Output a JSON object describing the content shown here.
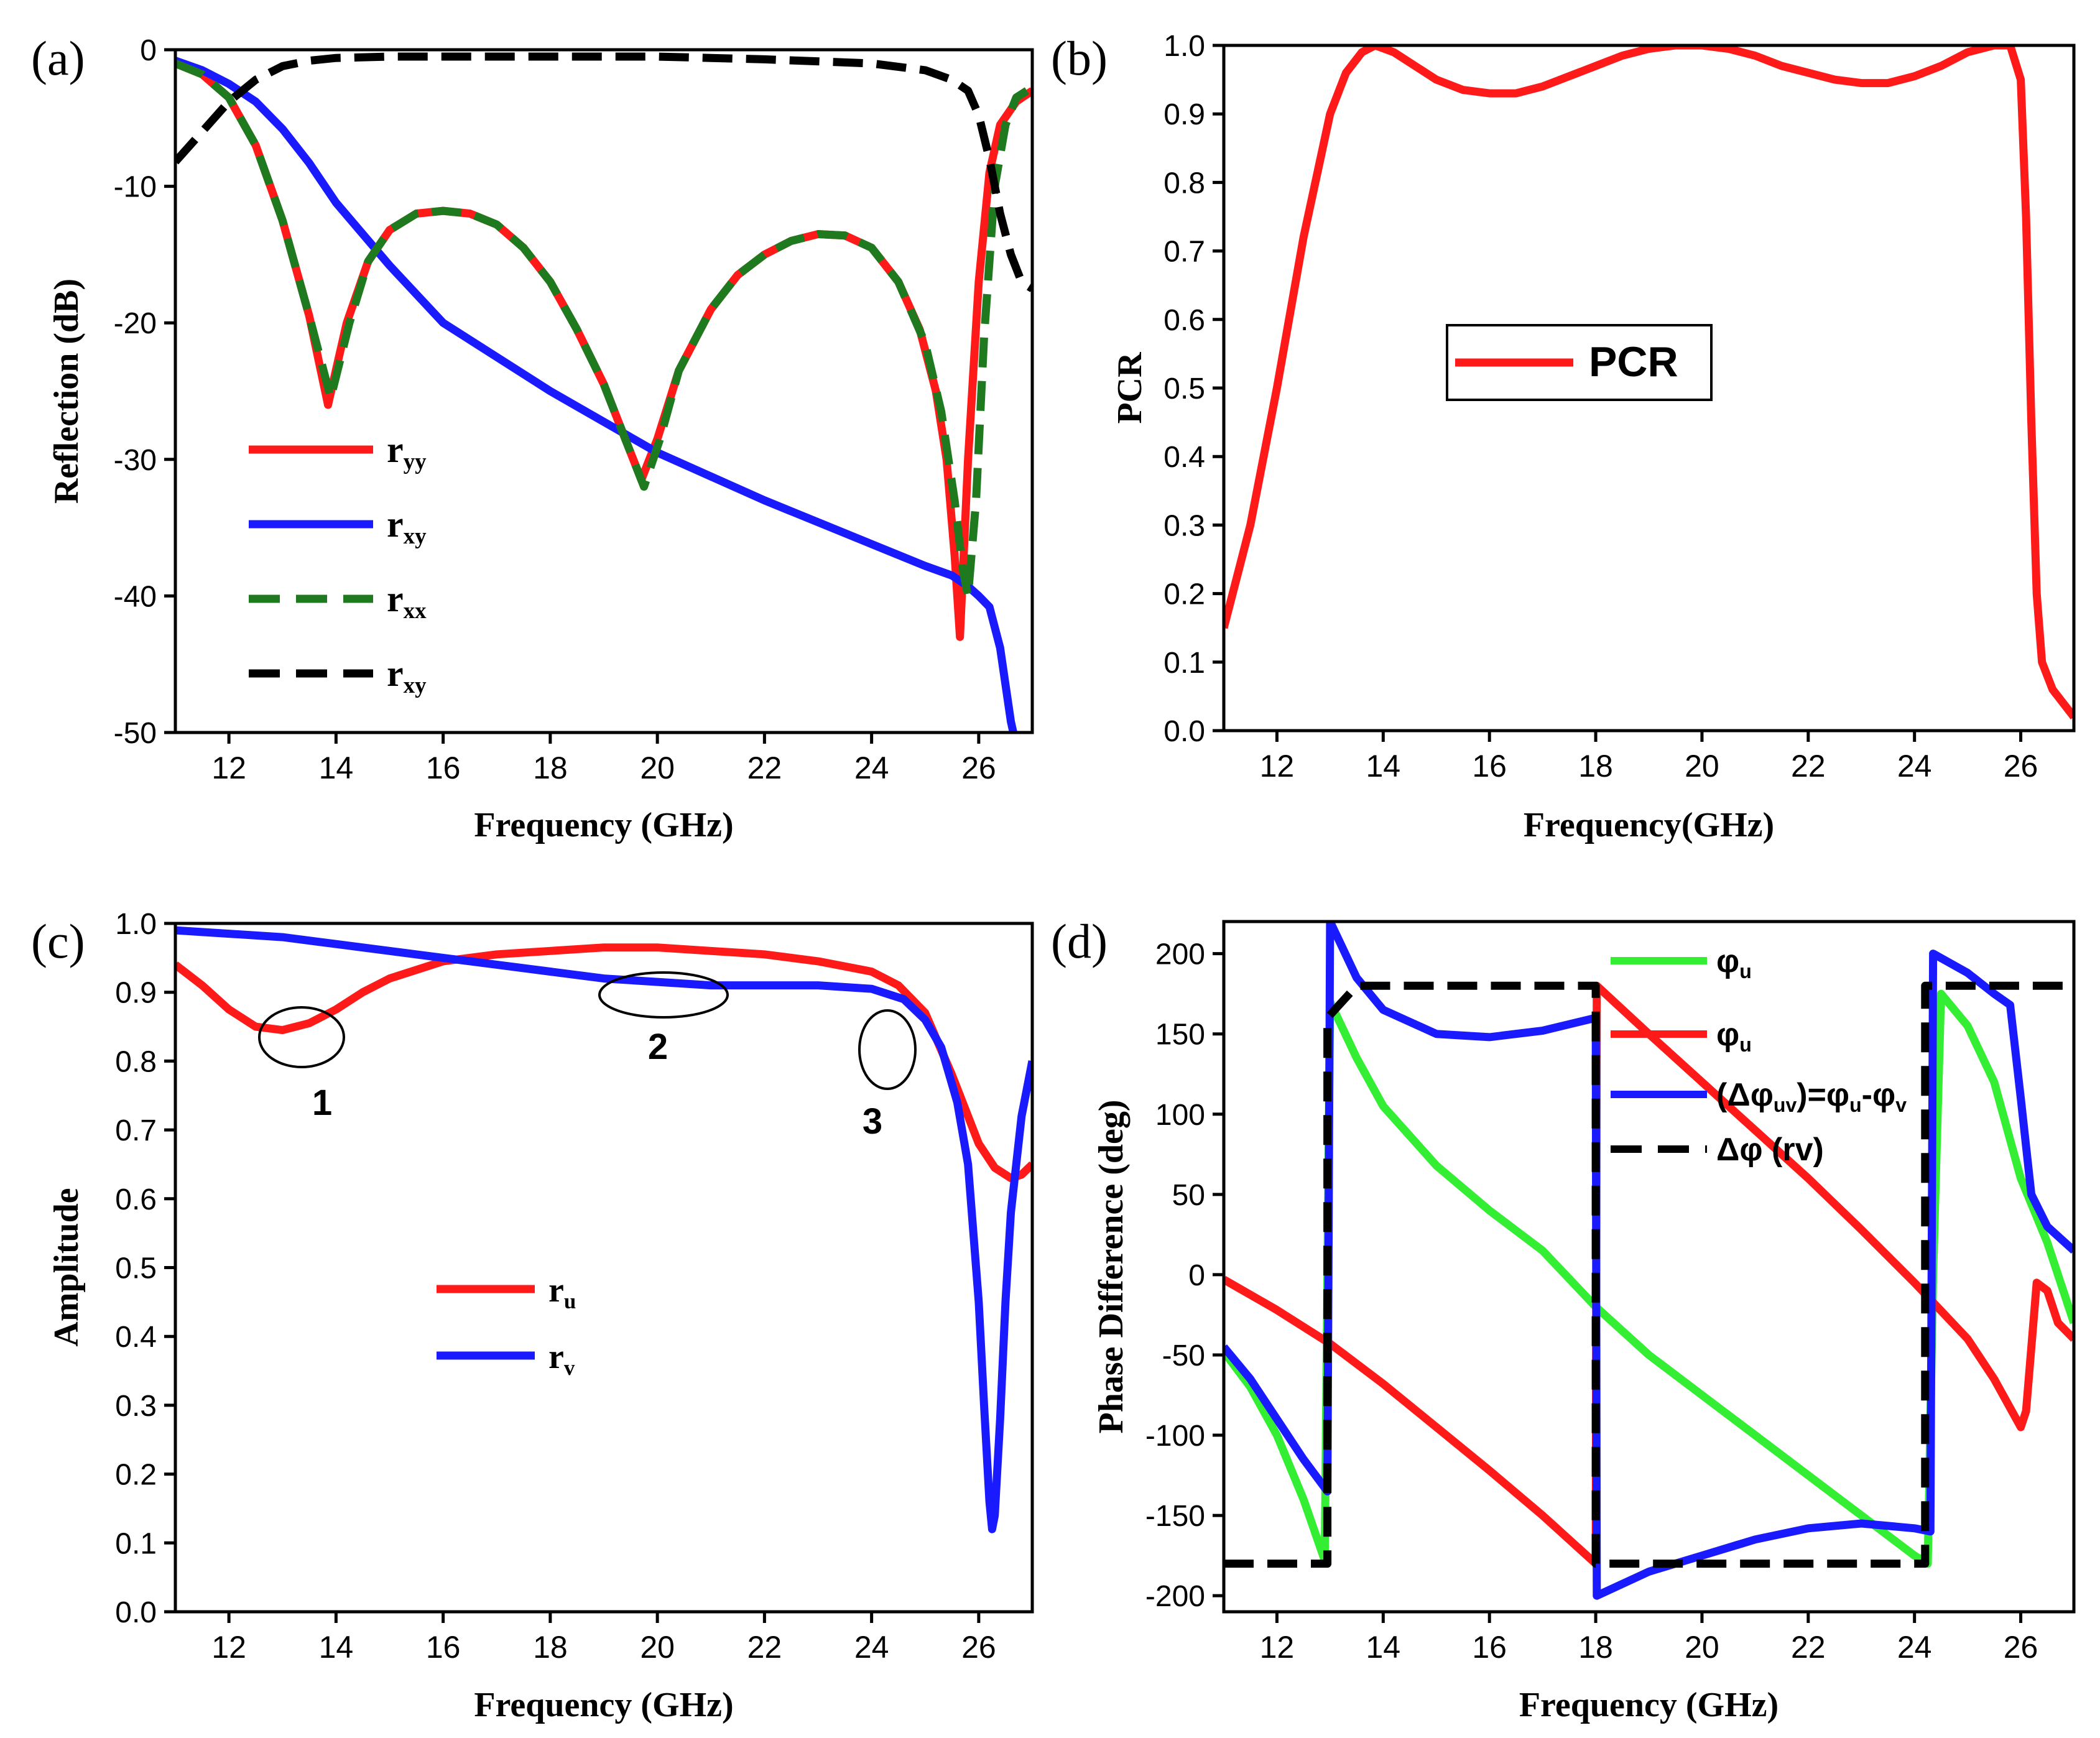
{
  "chart_data": [
    {
      "panel_label": "(a)",
      "type": "line",
      "xlabel": "Frequency (GHz)",
      "ylabel": "Reflection (dB)",
      "xlim": [
        11,
        27
      ],
      "ylim": [
        -50,
        0
      ],
      "xticks": [
        12,
        14,
        16,
        18,
        20,
        22,
        24,
        26
      ],
      "yticks": [
        0,
        -10,
        -20,
        -30,
        -40,
        -50
      ],
      "legend_position": "bottom-left",
      "series": [
        {
          "name": "ryy",
          "name_main": "r",
          "name_sub": "yy",
          "color": "#ff1a1a",
          "dash": "solid",
          "x": [
            11,
            11.5,
            12,
            12.5,
            13,
            13.5,
            13.85,
            14.2,
            14.6,
            15,
            15.5,
            16,
            16.5,
            17,
            17.5,
            18,
            18.5,
            19,
            19.4,
            19.7,
            20,
            20.4,
            21,
            21.5,
            22,
            22.5,
            23,
            23.5,
            24,
            24.5,
            24.9,
            25.2,
            25.4,
            25.55,
            25.65,
            25.8,
            26,
            26.2,
            26.4,
            26.7,
            27
          ],
          "y": [
            -1,
            -1.8,
            -3.5,
            -7,
            -12.5,
            -19.5,
            -26,
            -20,
            -15.5,
            -13.2,
            -12,
            -11.8,
            -12,
            -12.8,
            -14.5,
            -17,
            -20.5,
            -24.5,
            -28.5,
            -31.5,
            -28.5,
            -23.5,
            -19,
            -16.5,
            -15,
            -14,
            -13.5,
            -13.6,
            -14.5,
            -17,
            -20.5,
            -25,
            -30,
            -37,
            -43,
            -30,
            -17,
            -9,
            -5.5,
            -3.8,
            -3
          ]
        },
        {
          "name": "rxy",
          "name_main": "r",
          "name_sub": "xy",
          "color": "#1a1aff",
          "dash": "solid",
          "x": [
            11,
            11.5,
            12,
            12.5,
            13,
            13.5,
            14,
            15,
            16,
            18,
            20,
            22,
            24,
            25,
            25.5,
            25.8,
            26,
            26.2,
            26.4,
            26.6,
            26.8,
            27
          ],
          "y": [
            -0.8,
            -1.5,
            -2.5,
            -3.8,
            -5.8,
            -8.3,
            -11.2,
            -15.8,
            -20,
            -25,
            -29.5,
            -33,
            -36.2,
            -37.8,
            -38.5,
            -39.3,
            -40,
            -40.8,
            -43.8,
            -49.2,
            -52.7,
            -58
          ]
        },
        {
          "name": "rxx",
          "name_main": "r",
          "name_sub": "xx",
          "color": "#1f7a1f",
          "dash": "dash",
          "x": [
            11,
            11.5,
            12,
            12.5,
            13,
            13.5,
            13.9,
            14.25,
            14.6,
            15,
            15.5,
            16,
            16.5,
            17,
            17.5,
            18,
            18.5,
            19,
            19.4,
            19.75,
            20.05,
            20.4,
            21,
            21.5,
            22,
            22.5,
            23,
            23.5,
            24,
            24.5,
            25,
            25.3,
            25.55,
            25.7,
            25.8,
            25.95,
            26.1,
            26.3,
            26.5,
            26.7,
            26.9
          ],
          "y": [
            -1,
            -1.8,
            -3.5,
            -7,
            -12.5,
            -19.5,
            -25.5,
            -20,
            -15.5,
            -13.2,
            -12,
            -11.8,
            -12,
            -12.8,
            -14.5,
            -17,
            -20.5,
            -24.5,
            -28.5,
            -32,
            -28.5,
            -23.5,
            -19,
            -16.5,
            -15,
            -14,
            -13.5,
            -13.6,
            -14.5,
            -17,
            -21.5,
            -26.5,
            -33,
            -38,
            -40,
            -33,
            -21,
            -10,
            -5.5,
            -3.5,
            -3
          ]
        },
        {
          "name": "rxy",
          "name_main": "r",
          "name_sub": "xy",
          "color": "#000000",
          "dash": "dash",
          "x": [
            11,
            11.5,
            12,
            12.5,
            13,
            13.5,
            14,
            15,
            16,
            18,
            20,
            22,
            24,
            25,
            25.5,
            25.8,
            26,
            26.2,
            26.4,
            26.6,
            26.8,
            27
          ],
          "y": [
            -8.2,
            -6,
            -3.8,
            -2.2,
            -1.2,
            -0.8,
            -0.6,
            -0.5,
            -0.5,
            -0.5,
            -0.5,
            -0.7,
            -1,
            -1.5,
            -2.2,
            -3,
            -4.8,
            -8,
            -12,
            -15,
            -17,
            -17.5
          ]
        }
      ]
    },
    {
      "panel_label": "(b)",
      "type": "line",
      "xlabel": "Frequency(GHz)",
      "ylabel": "PCR",
      "xlim": [
        11,
        27
      ],
      "ylim": [
        0,
        1
      ],
      "xticks": [
        12,
        14,
        16,
        18,
        20,
        22,
        24,
        26
      ],
      "yticks": [
        0.0,
        0.1,
        0.2,
        0.3,
        0.4,
        0.5,
        0.6,
        0.7,
        0.8,
        0.9,
        1.0
      ],
      "legend_position": "center",
      "series": [
        {
          "name": "PCR",
          "color": "#ff1a1a",
          "dash": "solid",
          "x": [
            11,
            11.5,
            12,
            12.5,
            13,
            13.3,
            13.6,
            13.85,
            14.2,
            14.6,
            15,
            15.5,
            16,
            16.5,
            17,
            17.5,
            18,
            18.5,
            19,
            19.5,
            20,
            20.5,
            21,
            21.5,
            22,
            22.5,
            23,
            23.5,
            24,
            24.5,
            25,
            25.5,
            25.8,
            26,
            26.1,
            26.2,
            26.3,
            26.4,
            26.6,
            26.8,
            27
          ],
          "y": [
            0.15,
            0.3,
            0.5,
            0.72,
            0.9,
            0.96,
            0.99,
            1.0,
            0.99,
            0.97,
            0.95,
            0.935,
            0.93,
            0.93,
            0.94,
            0.955,
            0.97,
            0.985,
            0.995,
            1.0,
            1.0,
            0.995,
            0.985,
            0.97,
            0.96,
            0.95,
            0.945,
            0.945,
            0.955,
            0.97,
            0.99,
            1.0,
            1.0,
            0.95,
            0.75,
            0.45,
            0.2,
            0.1,
            0.06,
            0.04,
            0.02
          ]
        }
      ]
    },
    {
      "panel_label": "(c)",
      "type": "line",
      "xlabel": "Frequency (GHz)",
      "ylabel": "Amplitude",
      "xlim": [
        11,
        27
      ],
      "ylim": [
        0,
        1
      ],
      "xticks": [
        12,
        14,
        16,
        18,
        20,
        22,
        24,
        26
      ],
      "yticks": [
        0.0,
        0.1,
        0.2,
        0.3,
        0.4,
        0.5,
        0.6,
        0.7,
        0.8,
        0.9,
        1.0
      ],
      "legend_position": "center-left",
      "annotations": [
        "1",
        "2",
        "3"
      ],
      "series": [
        {
          "name": "ru",
          "name_main": "r",
          "name_sub": "u",
          "color": "#ff1a1a",
          "dash": "solid",
          "x": [
            11,
            11.5,
            12,
            12.5,
            13,
            13.5,
            14,
            14.5,
            15,
            16,
            17,
            18,
            19,
            20,
            21,
            22,
            23,
            24,
            24.5,
            25,
            25.5,
            25.8,
            26,
            26.3,
            26.6,
            26.8,
            27
          ],
          "y": [
            0.94,
            0.91,
            0.875,
            0.85,
            0.845,
            0.855,
            0.875,
            0.9,
            0.92,
            0.945,
            0.955,
            0.96,
            0.965,
            0.965,
            0.96,
            0.955,
            0.945,
            0.93,
            0.91,
            0.87,
            0.78,
            0.72,
            0.68,
            0.645,
            0.63,
            0.635,
            0.65
          ]
        },
        {
          "name": "rv",
          "name_main": "r",
          "name_sub": "v",
          "color": "#1a1aff",
          "dash": "solid",
          "x": [
            11,
            12,
            13,
            14,
            15,
            16,
            17,
            18,
            19,
            20,
            21,
            22,
            23,
            24,
            24.6,
            25,
            25.3,
            25.6,
            25.8,
            26,
            26.1,
            26.2,
            26.25,
            26.3,
            26.4,
            26.5,
            26.6,
            26.8,
            27
          ],
          "y": [
            0.99,
            0.985,
            0.98,
            0.97,
            0.96,
            0.95,
            0.94,
            0.93,
            0.92,
            0.915,
            0.91,
            0.91,
            0.91,
            0.905,
            0.89,
            0.86,
            0.82,
            0.74,
            0.65,
            0.45,
            0.3,
            0.16,
            0.12,
            0.14,
            0.28,
            0.45,
            0.58,
            0.72,
            0.8
          ]
        }
      ]
    },
    {
      "panel_label": "(d)",
      "type": "line",
      "xlabel": "Frequency (GHz)",
      "ylabel": "Phase Difference (deg)",
      "xlim": [
        11,
        27
      ],
      "ylim": [
        -210,
        220
      ],
      "xticks": [
        12,
        14,
        16,
        18,
        20,
        22,
        24,
        26
      ],
      "yticks": [
        200,
        150,
        100,
        50,
        0,
        -50,
        -100,
        -150,
        -200
      ],
      "legend_position": "top-right",
      "series": [
        {
          "name": "φu",
          "name_main": "φ",
          "name_sub": "u",
          "color": "#33ee33",
          "dash": "solid",
          "x": [
            11,
            11.5,
            12,
            12.5,
            12.9,
            12.95,
            13.0,
            13.5,
            14,
            15,
            16,
            17,
            18,
            19,
            20,
            21,
            22,
            23,
            24,
            24.25,
            24.35,
            24.5,
            25,
            25.5,
            26,
            26.5,
            27
          ],
          "y": [
            -48,
            -70,
            -100,
            -140,
            -178,
            0,
            170,
            135,
            105,
            68,
            40,
            15,
            -20,
            -50,
            -75,
            -100,
            -125,
            -150,
            -175,
            -180,
            0,
            175,
            155,
            120,
            60,
            20,
            -30
          ]
        },
        {
          "name": "φu",
          "name_main": "φ",
          "name_sub": "u",
          "color": "#ff1a1a",
          "dash": "solid",
          "x": [
            11,
            12,
            13,
            14,
            15,
            16,
            17,
            18,
            18.02,
            19,
            20,
            21,
            22,
            23,
            24,
            25,
            25.5,
            26.0,
            26.1,
            26.3,
            26.5,
            26.7,
            27
          ],
          "y": [
            -3,
            -22,
            -43,
            -68,
            -95,
            -122,
            -150,
            -180,
            180,
            150,
            120,
            90,
            60,
            28,
            -5,
            -40,
            -65,
            -95,
            -85,
            -5,
            -10,
            -30,
            -40
          ]
        },
        {
          "name": "(Δφuv)=φu-φv",
          "name_main": "(Δφ",
          "name_sub": "uv",
          "name_tail": ")=φ",
          "name_sub2": "u",
          "name_tail2": "-φ",
          "name_sub3": "v",
          "color": "#1a1aff",
          "dash": "solid",
          "x": [
            11,
            11.5,
            12,
            12.5,
            12.95,
            13.0,
            13.5,
            14,
            15,
            16,
            17,
            18,
            18.02,
            19,
            20,
            21,
            22,
            23,
            24,
            24.3,
            24.35,
            25,
            25.5,
            25.8,
            26,
            26.2,
            26.5,
            27
          ],
          "y": [
            -45,
            -65,
            -90,
            -115,
            -135,
            220,
            185,
            165,
            150,
            148,
            152,
            160,
            -200,
            -185,
            -175,
            -165,
            -158,
            -155,
            -158,
            -160,
            200,
            188,
            175,
            168,
            110,
            50,
            30,
            15
          ]
        },
        {
          "name": "Δφ (rv)",
          "color": "#000000",
          "dash": "dash",
          "x": [
            11,
            12.95,
            12.95,
            13.5,
            18,
            18,
            24.2,
            24.2,
            27
          ],
          "y": [
            -180,
            -180,
            160,
            180,
            180,
            -180,
            -180,
            180,
            180
          ]
        }
      ]
    }
  ]
}
